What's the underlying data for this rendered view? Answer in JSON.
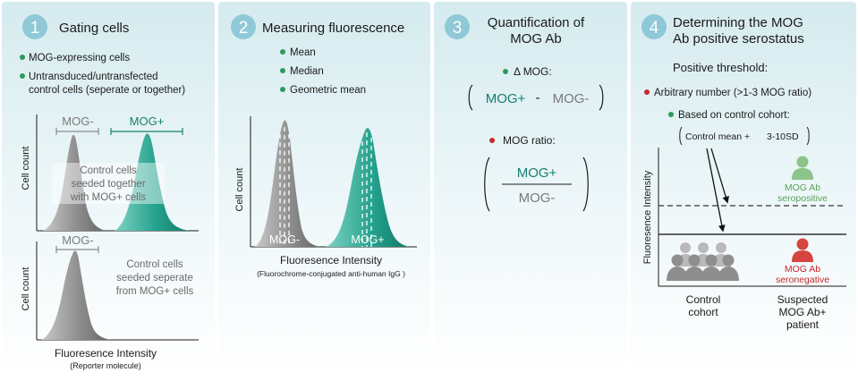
{
  "colors": {
    "panel_top": "#d5ebef",
    "panel_bottom": "#ffffff",
    "step_circle": "#8fc8d6",
    "teal": "#23a08c",
    "teal_dark": "#16806f",
    "gray": "#8a8a8a",
    "green_dot": "#2e9a5a",
    "red_dot": "#c9282d",
    "seropositive": "#8cc48a",
    "seronegative": "#d6453f"
  },
  "panels": [
    {
      "step": "1",
      "title": "Gating cells",
      "bullets": [
        "MOG-expressing cells",
        "Untransduced/untransfected",
        "control cells (seperate or together)"
      ],
      "top_plot": {
        "ylabel": "Cell count",
        "label_neg": "MOG-",
        "label_pos": "MOG+",
        "note": [
          "Control cells",
          "seeded together",
          "with MOG+ cells"
        ]
      },
      "bottom_plot": {
        "ylabel": "Cell count",
        "label_neg": "MOG-",
        "note": [
          "Control cells",
          "seeded seperate",
          "from MOG+ cells"
        ]
      },
      "xlabel": "Fluoresence Intensity",
      "xsublabel": "(Reporter molecule)"
    },
    {
      "step": "2",
      "title": "Measuring fluorescence",
      "bullets": [
        "Mean",
        "Median",
        "Geometric mean"
      ],
      "plot": {
        "ylabel": "Cell count",
        "label_neg": "MOG-",
        "label_pos": "MOG+",
        "xlabel": "Fluoresence Intensity",
        "xsublabel": "(Fluorochrome-conjugated anti-human IgG )"
      }
    },
    {
      "step": "3",
      "title_line1": "Quantification of",
      "title_line2": "MOG Ab",
      "delta_label": "Δ MOG:",
      "delta_pos": "MOG+",
      "delta_minus": "-",
      "delta_neg": "MOG-",
      "ratio_label": "MOG ratio:",
      "ratio_num": "MOG+",
      "ratio_den": "MOG-"
    },
    {
      "step": "4",
      "title_line1": "Determining the MOG",
      "title_line2": "Ab positive serostatus",
      "threshold_heading": "Positive threshold:",
      "bullet_arbitrary": "Arbitrary number (>1-3 MOG ratio)",
      "bullet_control": "Based on control cohort:",
      "formula_part1": "Control mean +",
      "formula_part2": "3-10SD",
      "ylabel": "Fluoresence Intensity",
      "seropositive": [
        "MOG Ab",
        "seropositive"
      ],
      "seronegative": [
        "MOG Ab",
        "seronegative"
      ],
      "xcat_control": [
        "Control",
        "cohort"
      ],
      "xcat_patient": [
        "Suspected",
        "MOG Ab+",
        "patient"
      ]
    }
  ]
}
